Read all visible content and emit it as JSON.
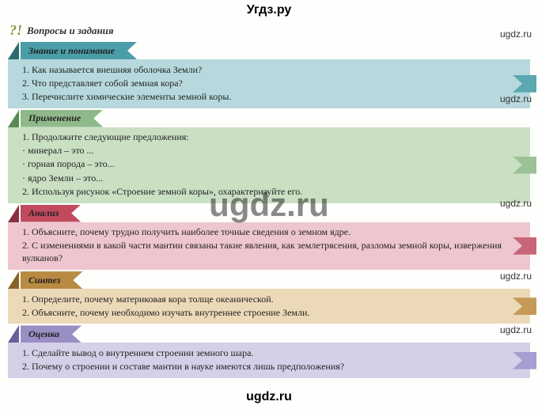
{
  "header_text": "Угдз.ру",
  "footer_text": "ugdz.ru",
  "watermarks": {
    "center": "ugdz.ru",
    "side": "ugdz.ru",
    "positions": [
      36,
      118,
      250,
      342,
      410
    ]
  },
  "main_title": "Вопросы и задания",
  "main_icon": "?!",
  "sections": [
    {
      "label": "Знание и понимание",
      "header_bg": "#4a9ea8",
      "body_bg": "#b7d9dd",
      "tri_color": "#2d6b73",
      "flag_color": "#5aa8b0",
      "items": [
        "1. Как называется внешняя оболочка Земли?",
        "2. Что представляет собой земная кора?",
        "3. Перечислите химические элементы земной коры."
      ]
    },
    {
      "label": "Применение",
      "header_bg": "#8fb98a",
      "body_bg": "#c9e0c3",
      "tri_color": "#5a8a54",
      "flag_color": "#9bc296",
      "items": [
        "1. Продолжите следующие предложения:",
        "· минерал – это ...",
        "· горная порода – это...",
        "· ядро Земли – это...",
        "2. Используя рисунок «Строение земной коры», охарактеризуйте его."
      ],
      "bullets": [
        1,
        2,
        3
      ]
    },
    {
      "label": "Анализ",
      "header_bg": "#c14a5e",
      "body_bg": "#eec6cf",
      "tri_color": "#8a2f40",
      "flag_color": "#c96578",
      "items": [
        "1. Объясните, почему трудно получить наиболее точные сведения о земном ядре.",
        "2. С изменениями в какой части мантии связаны такие явления, как землетрясения, разломы земной коры, извержения вулканов?"
      ]
    },
    {
      "label": "Синтез",
      "header_bg": "#b88a42",
      "body_bg": "#ecd9b8",
      "tri_color": "#8a6228",
      "flag_color": "#c49a56",
      "items": [
        "1. Определите, почему материковая кора толще океанической.",
        "2. Объясните, почему необходимо изучать внутреннее строение Земли."
      ]
    },
    {
      "label": "Оценка",
      "header_bg": "#9a8fc4",
      "body_bg": "#d5cfe8",
      "tri_color": "#6a5f9a",
      "flag_color": "#a79dcf",
      "items": [
        "1. Сделайте вывод о внутреннем строении земного шара.",
        "2. Почему о строении и составе мантии в науке имеются лишь предположения?"
      ]
    }
  ]
}
